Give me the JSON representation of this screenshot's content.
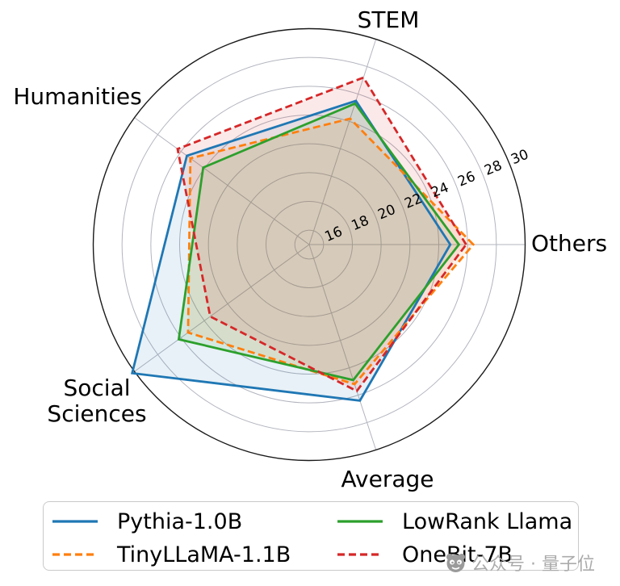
{
  "chart_data": {
    "type": "radar",
    "title": "",
    "categories": [
      "Others",
      "STEM",
      "Humanities",
      "Social Sciences",
      "Average"
    ],
    "axis_angles_deg": [
      0,
      72,
      144,
      216,
      288
    ],
    "radial_axis": {
      "center_value": 15,
      "max": 30,
      "ticks": [
        16,
        18,
        20,
        22,
        24,
        26,
        28,
        30
      ],
      "tick_label_angle_deg": 22.5
    },
    "series": [
      {
        "name": "Pythia-1.0B",
        "color": "#1f77b4",
        "line_style": "solid",
        "values": [
          24.8,
          25.5,
          25.5,
          30.2,
          26.4
        ]
      },
      {
        "name": "TinyLLaMA-1.1B",
        "color": "#ff7f0e",
        "line_style": "dashed",
        "values": [
          26.4,
          24.2,
          25.2,
          25.4,
          25.2
        ]
      },
      {
        "name": "LowRank Llama",
        "color": "#2ca02c",
        "line_style": "solid",
        "values": [
          25.4,
          25.3,
          24.1,
          26.2,
          24.9
        ]
      },
      {
        "name": "OneBit-7B",
        "color": "#d62728",
        "line_style": "dashed",
        "values": [
          25.9,
          27.2,
          26.3,
          23.5,
          25.7
        ]
      }
    ],
    "fill_alpha": 0.1,
    "grid": true,
    "grid_color": "#b3b5bf",
    "outline_color": "#1a1a1a",
    "legend_position": "bottom"
  },
  "watermark": {
    "logo_icon": "qbitai-panda-logo",
    "text": "公众号 · 量子位"
  }
}
